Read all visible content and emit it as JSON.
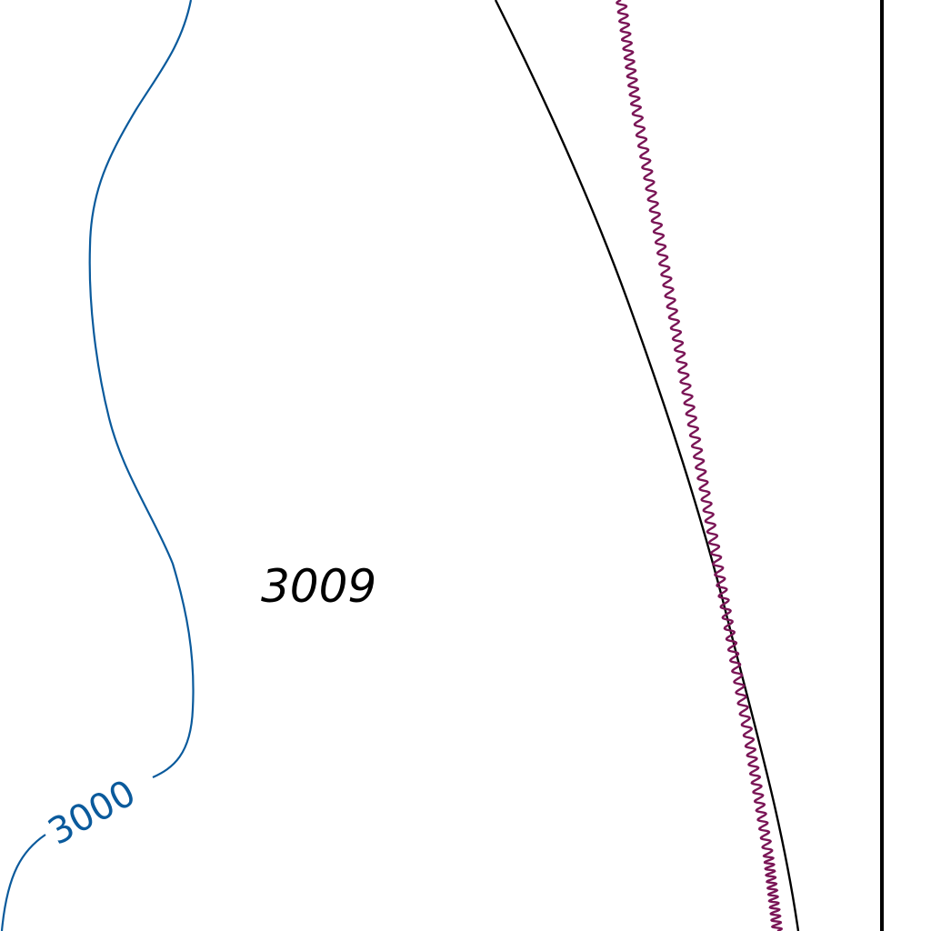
{
  "map": {
    "contour": {
      "label": "3000",
      "color": "#0a5a9c"
    },
    "spot_height": {
      "label": "3009",
      "color": "#000000"
    },
    "boundary_line": {
      "color": "#000000"
    },
    "wavy_line": {
      "color": "#7a1556"
    },
    "frame_line": {
      "color": "#000000"
    },
    "background_color": "#ffffff"
  }
}
